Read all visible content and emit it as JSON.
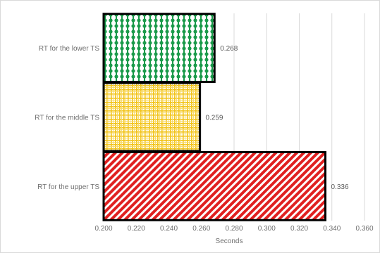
{
  "chart_data": {
    "type": "bar",
    "orientation": "horizontal",
    "categories": [
      "RT for the lower TS",
      "RT for the middle TS",
      "RT for the upper TS"
    ],
    "values": [
      0.268,
      0.259,
      0.336
    ],
    "data_labels": [
      "0.268",
      "0.259",
      "0.336"
    ],
    "xlabel": "Seconds",
    "ylabel": "",
    "xlim": [
      0.2,
      0.36
    ],
    "x_ticks": [
      0.2,
      0.22,
      0.24,
      0.26,
      0.28,
      0.3,
      0.32,
      0.34,
      0.36
    ],
    "x_tick_labels": [
      "0.200",
      "0.220",
      "0.240",
      "0.260",
      "0.280",
      "0.300",
      "0.320",
      "0.340",
      "0.360"
    ],
    "grid": "vertical",
    "legend": "none",
    "bar_colors": [
      "#1a9a4a",
      "#f2c318",
      "#e02020"
    ],
    "bar_patterns": [
      "dots",
      "grid",
      "diagonal-stripes"
    ],
    "bar_outline_color": "#000000",
    "grid_color": "#d9d9d9"
  }
}
